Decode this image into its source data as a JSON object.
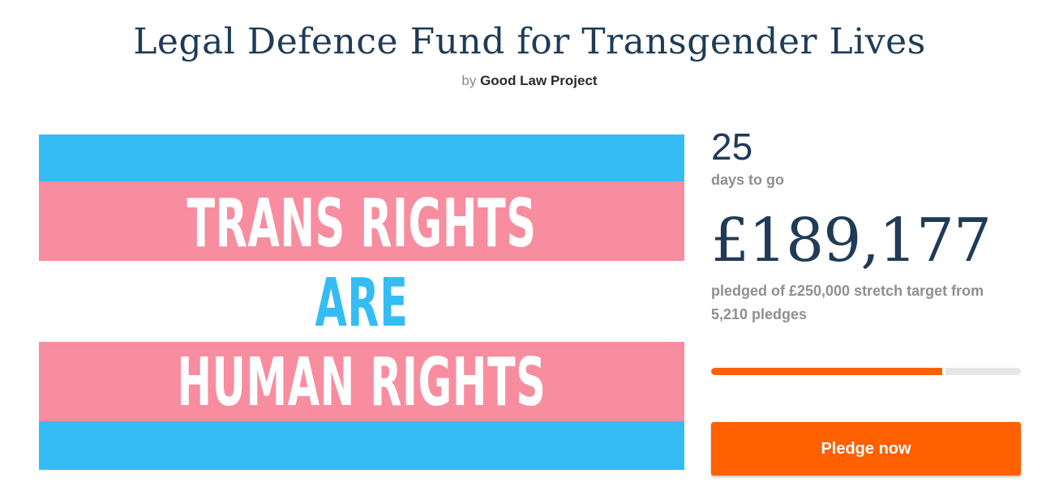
{
  "campaign": {
    "title": "Legal Defence Fund for Transgender Lives",
    "by_prefix": "by",
    "author": "Good Law Project"
  },
  "hero_image": {
    "line1": "TRANS RIGHTS",
    "line2": "ARE",
    "line3": "HUMAN RIGHTS",
    "colors": {
      "blue": "#35bcf5",
      "pink": "#f88da0",
      "white": "#ffffff"
    }
  },
  "stats": {
    "days_count": "25",
    "days_label": "days to go",
    "amount": "£189,177",
    "pledge_summary": "pledged of £250,000 stretch target from 5,210 pledges",
    "progress_fraction": 0.756
  },
  "actions": {
    "pledge_label": "Pledge now"
  },
  "colors": {
    "accent": "#ff6000",
    "heading": "#1f3b57",
    "muted": "#8f8f8f"
  }
}
